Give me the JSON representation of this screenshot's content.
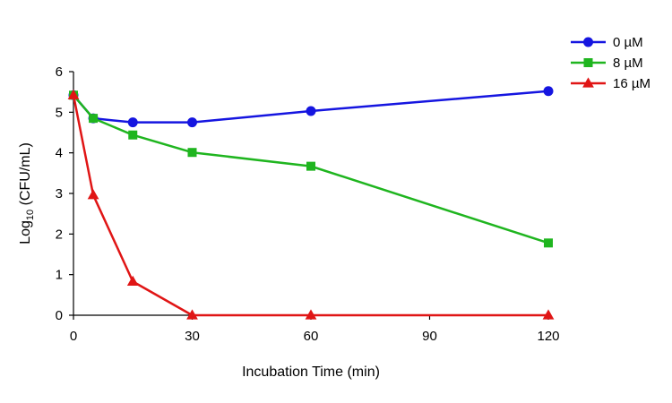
{
  "chart_data": {
    "type": "line",
    "title": "",
    "xlabel": "Incubation Time (min)",
    "ylabel": {
      "prefix": "Log",
      "subscript": "10",
      "suffix": " (CFU/mL)"
    },
    "x_scale": "linear",
    "xlim": [
      0,
      120
    ],
    "ylim": [
      0,
      6
    ],
    "x_ticks": [
      0,
      30,
      60,
      90,
      120
    ],
    "y_ticks": [
      0,
      1,
      2,
      3,
      4,
      5,
      6
    ],
    "grid": false,
    "legend_position": "top-right",
    "series": [
      {
        "name": "0 µM",
        "color": "#1515e0",
        "marker": "circle",
        "points": [
          [
            0,
            5.42
          ],
          [
            5,
            4.85
          ],
          [
            15,
            4.75
          ],
          [
            30,
            4.75
          ],
          [
            60,
            5.03
          ],
          [
            120,
            5.52
          ]
        ]
      },
      {
        "name": "8 µM",
        "color": "#1fb51f",
        "marker": "square",
        "points": [
          [
            0,
            5.42
          ],
          [
            5,
            4.85
          ],
          [
            15,
            4.44
          ],
          [
            30,
            4.01
          ],
          [
            60,
            3.67
          ],
          [
            120,
            1.78
          ]
        ]
      },
      {
        "name": "16 µM",
        "color": "#e01515",
        "marker": "triangle",
        "points": [
          [
            0,
            5.42
          ],
          [
            5,
            2.96
          ],
          [
            15,
            0.83
          ],
          [
            30,
            0
          ],
          [
            60,
            0
          ],
          [
            120,
            0
          ]
        ]
      }
    ]
  }
}
